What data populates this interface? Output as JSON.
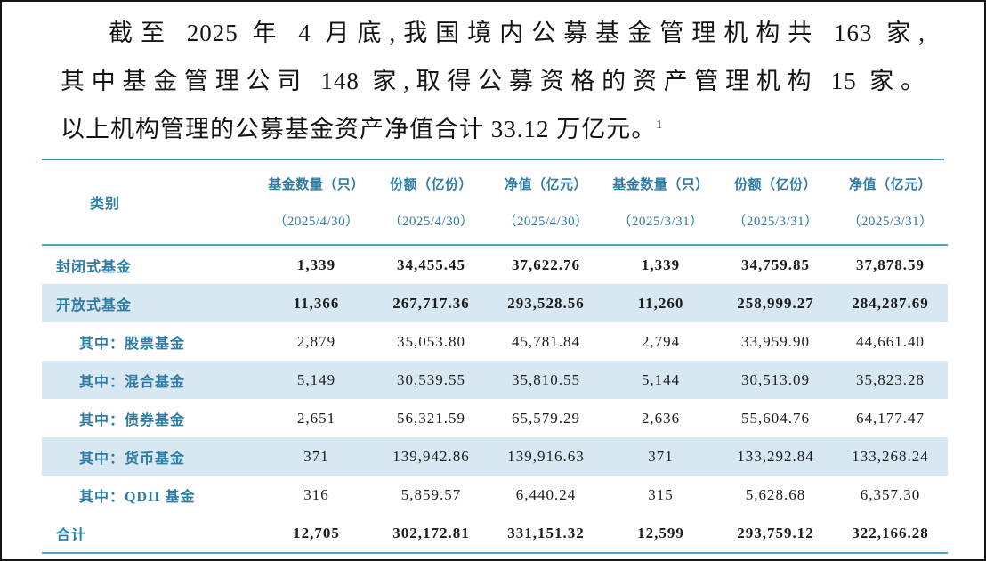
{
  "paragraph": {
    "lines": [
      "截至 2025 年 4 月底,我国境内公募基金管理机构共 163 家,",
      "其中基金管理公司 148 家,取得公募资格的资产管理机构 15 家。",
      "以上机构管理的公募基金资产净值合计 33.12 万亿元。"
    ],
    "footnote_marker": "1"
  },
  "table": {
    "header": {
      "category": "类别",
      "columns": [
        {
          "title": "基金数量（只）",
          "date": "（2025/4/30）"
        },
        {
          "title": "份额（亿份）",
          "date": "（2025/4/30）"
        },
        {
          "title": "净值（亿元）",
          "date": "（2025/4/30）"
        },
        {
          "title": "基金数量（只）",
          "date": "（2025/3/31）"
        },
        {
          "title": "份额（亿份）",
          "date": "（2025/3/31）"
        },
        {
          "title": "净值（亿元）",
          "date": "（2025/3/31）"
        }
      ]
    },
    "rows": [
      {
        "label": "封闭式基金",
        "indent": false,
        "bold": true,
        "striped": false,
        "values": [
          "1,339",
          "34,455.45",
          "37,622.76",
          "1,339",
          "34,759.85",
          "37,878.59"
        ]
      },
      {
        "label": "开放式基金",
        "indent": false,
        "bold": true,
        "striped": true,
        "values": [
          "11,366",
          "267,717.36",
          "293,528.56",
          "11,260",
          "258,999.27",
          "284,287.69"
        ]
      },
      {
        "label": "其中：股票基金",
        "indent": true,
        "bold": false,
        "striped": false,
        "values": [
          "2,879",
          "35,053.80",
          "45,781.84",
          "2,794",
          "33,959.90",
          "44,661.40"
        ]
      },
      {
        "label": "其中：混合基金",
        "indent": true,
        "bold": false,
        "striped": true,
        "values": [
          "5,149",
          "30,539.55",
          "35,810.55",
          "5,144",
          "30,513.09",
          "35,823.28"
        ]
      },
      {
        "label": "其中：债券基金",
        "indent": true,
        "bold": false,
        "striped": false,
        "values": [
          "2,651",
          "56,321.59",
          "65,579.29",
          "2,636",
          "55,604.76",
          "64,177.47"
        ]
      },
      {
        "label": "其中：货币基金",
        "indent": true,
        "bold": false,
        "striped": true,
        "values": [
          "371",
          "139,942.86",
          "139,916.63",
          "371",
          "133,292.84",
          "133,268.24"
        ]
      },
      {
        "label": "其中：QDII 基金",
        "indent": true,
        "bold": false,
        "striped": false,
        "values": [
          "316",
          "5,859.57",
          "6,440.24",
          "315",
          "5,628.68",
          "6,357.30"
        ]
      },
      {
        "label": "合计",
        "indent": false,
        "bold": true,
        "striped": false,
        "values": [
          "12,705",
          "302,172.81",
          "331,151.32",
          "12,599",
          "293,759.12",
          "322,166.28"
        ]
      }
    ]
  },
  "colors": {
    "accent_teal_text": "#2d7ca3",
    "stripe_blue": "#d7e8f2",
    "rule_teal": "#4aa4c4",
    "body_text": "#1c1c1c"
  }
}
